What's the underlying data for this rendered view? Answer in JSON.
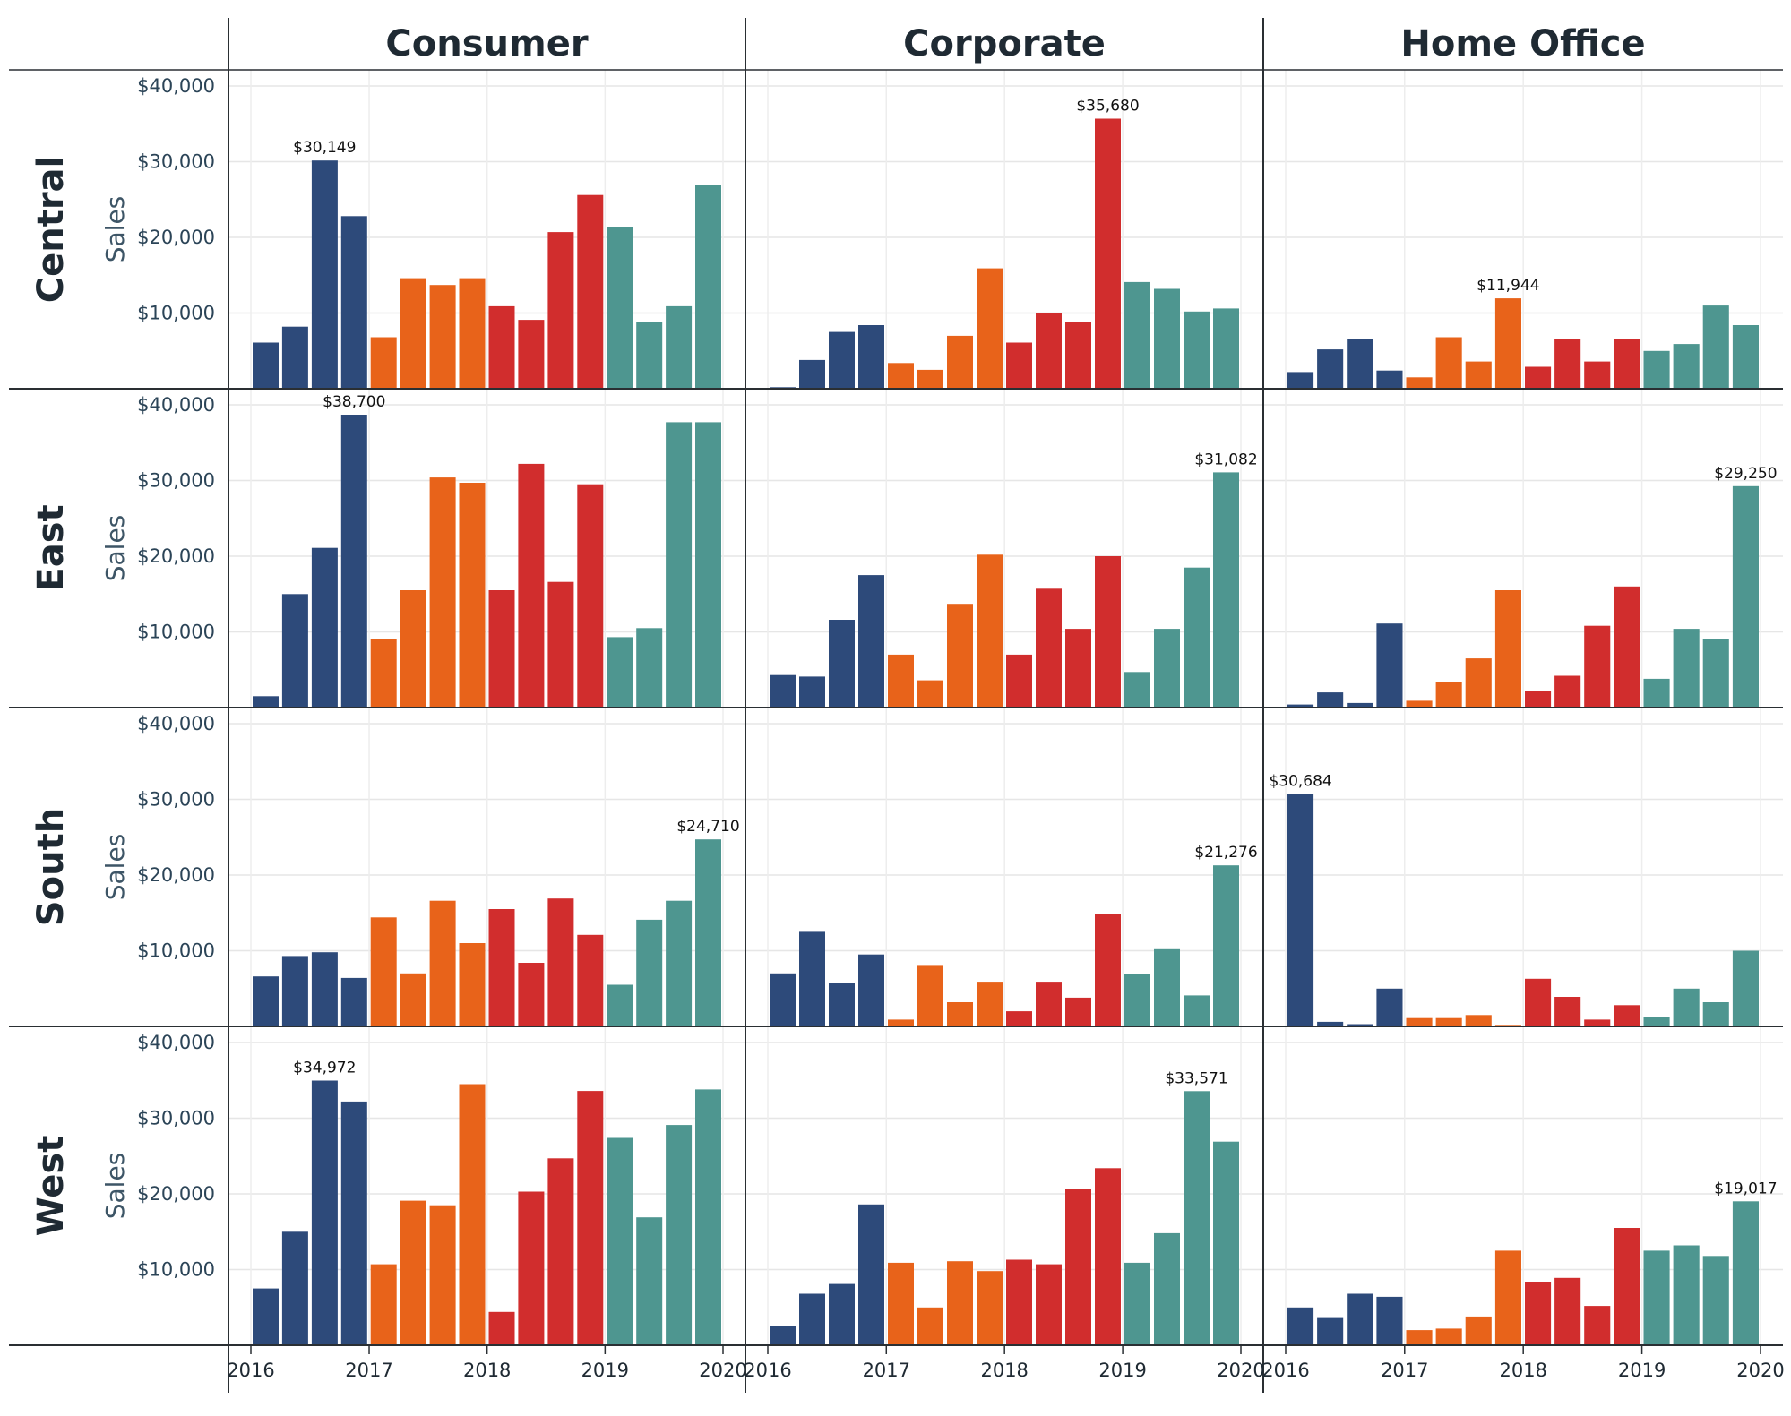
{
  "chart_data": {
    "type": "bar",
    "columns": [
      "Consumer",
      "Corporate",
      "Home Office"
    ],
    "rows": [
      "Central",
      "East",
      "South",
      "West"
    ],
    "y_axis_title": "Sales",
    "y_ticks": [
      "$10,000",
      "$20,000",
      "$30,000",
      "$40,000"
    ],
    "y_tick_values": [
      10000,
      20000,
      30000,
      40000
    ],
    "ylim": [
      0,
      42000
    ],
    "x_ticks": [
      "2016",
      "2017",
      "2018",
      "2019",
      "2020"
    ],
    "x_range": [
      "2016-01-01",
      "2020-01-01"
    ],
    "x_tick_dates": [
      "2016-01-01",
      "2017-01-01",
      "2018-01-01",
      "2019-01-01",
      "2020-01-01"
    ],
    "quarters": [
      "2016 Q1",
      "2016 Q2",
      "2016 Q3",
      "2016 Q4",
      "2017 Q1",
      "2017 Q2",
      "2017 Q3",
      "2017 Q4",
      "2018 Q1",
      "2018 Q2",
      "2018 Q3",
      "2018 Q4",
      "2019 Q1",
      "2019 Q2",
      "2019 Q3",
      "2019 Q4"
    ],
    "year_colors": {
      "2016": "#2d4a7a",
      "2017": "#e8631a",
      "2018": "#d12d2d",
      "2019": "#4e9690"
    },
    "grid": true,
    "cells": {
      "Central": {
        "Consumer": {
          "values": [
            6100,
            8200,
            30149,
            22800,
            6800,
            14600,
            13700,
            14600,
            10900,
            9100,
            20700,
            25600,
            21400,
            8800,
            10900,
            26900
          ],
          "label": "$30,149",
          "label_index": 2
        },
        "Corporate": {
          "values": [
            200,
            3800,
            7500,
            8400,
            3400,
            2500,
            7000,
            15900,
            6100,
            10000,
            8800,
            35680,
            14100,
            13200,
            10200,
            10600
          ],
          "label": "$35,680",
          "label_index": 11
        },
        "Home Office": {
          "values": [
            2200,
            5200,
            6600,
            2400,
            1500,
            6800,
            3600,
            11944,
            2900,
            6600,
            3600,
            6600,
            5000,
            5900,
            11000,
            8400
          ],
          "label": "$11,944",
          "label_index": 7
        }
      },
      "East": {
        "Consumer": {
          "values": [
            1500,
            15000,
            21100,
            38700,
            9100,
            15500,
            30400,
            29700,
            15500,
            32200,
            16600,
            29500,
            9300,
            10500,
            37700,
            37700
          ],
          "label": "$38,700",
          "label_index": 3
        },
        "Corporate": {
          "values": [
            4300,
            4100,
            11600,
            17500,
            7000,
            3600,
            13700,
            20200,
            7000,
            15700,
            10400,
            20000,
            4700,
            10400,
            18500,
            31082
          ],
          "label": "$31,082",
          "label_index": 15
        },
        "Home Office": {
          "values": [
            400,
            2000,
            600,
            11100,
            900,
            3400,
            6500,
            15500,
            2200,
            4200,
            10800,
            16000,
            3800,
            10400,
            9100,
            29250
          ],
          "label": "$29,250",
          "label_index": 15
        }
      },
      "South": {
        "Consumer": {
          "values": [
            6600,
            9300,
            9800,
            6400,
            14400,
            7000,
            16600,
            11000,
            15500,
            8400,
            16900,
            12100,
            5500,
            14100,
            16600,
            24710
          ],
          "label": "$24,710",
          "label_index": 15
        },
        "Corporate": {
          "values": [
            7000,
            12500,
            5700,
            9500,
            900,
            8000,
            3200,
            5900,
            2000,
            5900,
            3800,
            14800,
            6900,
            10200,
            4100,
            21276
          ],
          "label": "$21,276",
          "label_index": 15
        },
        "Home Office": {
          "values": [
            30684,
            600,
            300,
            5000,
            1100,
            1100,
            1500,
            200,
            6300,
            3900,
            900,
            2800,
            1300,
            5000,
            3200,
            10000
          ],
          "label": "$30,684",
          "label_index": 0
        }
      },
      "West": {
        "Consumer": {
          "values": [
            7500,
            15000,
            34972,
            32200,
            10700,
            19100,
            18500,
            34500,
            4400,
            20300,
            24700,
            33600,
            27400,
            16900,
            29100,
            33800
          ],
          "label": "$34,972",
          "label_index": 2
        },
        "Corporate": {
          "values": [
            2500,
            6800,
            8100,
            18600,
            10900,
            5000,
            11100,
            9800,
            11300,
            10700,
            20700,
            23400,
            10900,
            14800,
            33571,
            26900
          ],
          "label": "$33,571",
          "label_index": 14
        },
        "Home Office": {
          "values": [
            5000,
            3600,
            6800,
            6400,
            2000,
            2200,
            3800,
            12500,
            8400,
            8900,
            5200,
            15500,
            12500,
            13200,
            11800,
            19017
          ],
          "label": "$19,017",
          "label_index": 15
        }
      }
    }
  }
}
